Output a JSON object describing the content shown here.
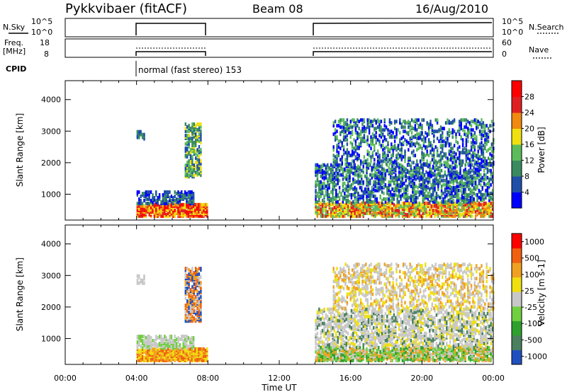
{
  "header": {
    "radar_label": "Pykkvibaer (fitACF)",
    "beam_label": "Beam 08",
    "date_label": "16/Aug/2010"
  },
  "status_panels": {
    "nsky_label": "N.Sky",
    "nsky_ticks": [
      "10^5",
      "10^0"
    ],
    "nsearch_label": "N.Search",
    "nsearch_ticks": [
      "10^5",
      "10^0"
    ],
    "freq_label": "Freq.",
    "freq_unit": "[MHz]",
    "freq_ticks": [
      "18",
      "8"
    ],
    "nave_label": "Nave",
    "nave_ticks": [
      "60",
      "0"
    ],
    "cpid_label": "CPID",
    "cpid_text": "normal (fast stereo) 153"
  },
  "chart_data": [
    {
      "type": "heatmap",
      "name": "power",
      "ylabel": "Slant Range [km]",
      "yticks": [
        1000,
        2000,
        3000,
        4000
      ],
      "ylim": [
        180,
        4600
      ],
      "xlim_hours": [
        0,
        24
      ],
      "colorbar_label": "Power [dB]",
      "colorbar_ticks": [
        "4",
        "8",
        "12",
        "16",
        "20",
        "24",
        "28"
      ],
      "colorbar_colors": [
        "#0000ff",
        "#1f4fa8",
        "#3a8a60",
        "#5cbc5c",
        "#f0e010",
        "#f08a10",
        "#e02020",
        "#ff0000"
      ],
      "data_intervals": [
        {
          "start": "04:00",
          "end": "08:00"
        },
        {
          "start": "14:00",
          "end": "24:00"
        }
      ]
    },
    {
      "type": "heatmap",
      "name": "velocity",
      "ylabel": "Slant Range [km]",
      "yticks": [
        1000,
        2000,
        3000,
        4000
      ],
      "ylim": [
        180,
        4600
      ],
      "xlim_hours": [
        0,
        24
      ],
      "xlabel": "Time UT",
      "xticks": [
        "00:00",
        "04:00",
        "08:00",
        "12:00",
        "16:00",
        "20:00",
        "00:00"
      ],
      "colorbar_label": "Velocity [m s-1]",
      "colorbar_ticks": [
        "1000",
        "500",
        "100",
        "25",
        "-25",
        "-100",
        "-500",
        "-1000"
      ],
      "colorbar_colors": [
        "#2050c0",
        "#4a8060",
        "#2ea02e",
        "#70d040",
        "#c8c8c8",
        "#f0e010",
        "#f0a020",
        "#f06010",
        "#ff0000"
      ],
      "data_intervals": [
        {
          "start": "04:00",
          "end": "08:00"
        },
        {
          "start": "14:00",
          "end": "24:00"
        }
      ]
    }
  ]
}
